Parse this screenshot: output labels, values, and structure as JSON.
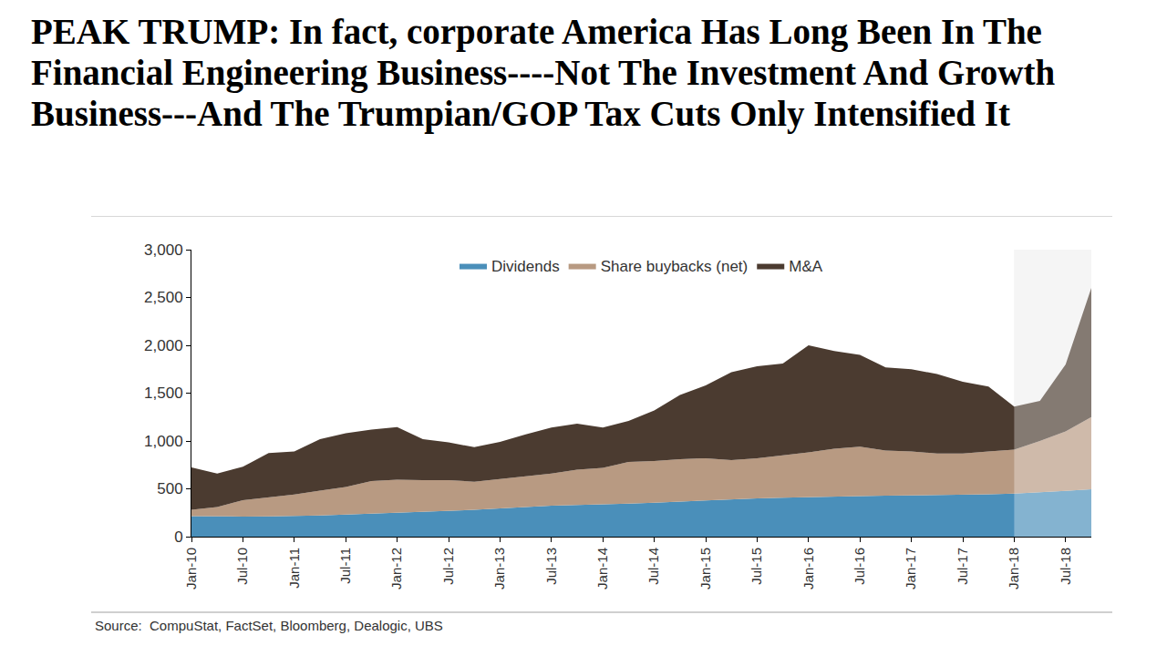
{
  "chart_data": {
    "type": "area",
    "title": "PEAK TRUMP: In fact, corporate America Has Long Been In The Financial Engineering Business----Not The Investment And Growth Business---And The Trumpian/GOP Tax Cuts Only Intensified It",
    "source": "Source:  CompuStat, FactSet, Bloomberg, Dealogic, UBS",
    "categories": [
      "Jan-10",
      null,
      "Jul-10",
      null,
      "Jan-11",
      null,
      "Jul-11",
      null,
      "Jan-12",
      null,
      "Jul-12",
      null,
      "Jan-13",
      null,
      "Jul-13",
      null,
      "Jan-14",
      null,
      "Jul-14",
      null,
      "Jan-15",
      null,
      "Jul-15",
      null,
      "Jan-16",
      null,
      "Jul-16",
      null,
      "Jan-17",
      null,
      "Jul-17",
      null,
      "Jan-18",
      null,
      "Jul-18",
      null
    ],
    "series": [
      {
        "name": "Dividends",
        "color": "#4a8fba",
        "values": [
          215,
          210,
          210,
          212,
          215,
          222,
          230,
          240,
          250,
          258,
          265,
          280,
          295,
          310,
          325,
          332,
          335,
          345,
          355,
          368,
          380,
          392,
          400,
          408,
          415,
          420,
          425,
          428,
          430,
          433,
          436,
          442,
          450,
          462,
          478,
          495
        ]
      },
      {
        "name": "Share buybacks (net)",
        "color": "#b89a82",
        "values": [
          65,
          100,
          170,
          198,
          225,
          258,
          290,
          340,
          345,
          332,
          325,
          295,
          305,
          320,
          335,
          368,
          385,
          435,
          435,
          442,
          440,
          408,
          420,
          442,
          465,
          500,
          515,
          472,
          460,
          437,
          434,
          448,
          460,
          538,
          622,
          755
        ]
      },
      {
        "name": "M&A",
        "color": "#4b3b30",
        "values": [
          445,
          350,
          350,
          465,
          450,
          540,
          560,
          540,
          550,
          430,
          395,
          360,
          390,
          440,
          480,
          480,
          420,
          430,
          530,
          670,
          760,
          920,
          960,
          960,
          1120,
          1020,
          960,
          870,
          860,
          830,
          750,
          680,
          450,
          420,
          700,
          1350
        ]
      }
    ],
    "stacked": true,
    "shaded_from": "Jan-18",
    "ylim": [
      0,
      3000
    ],
    "yticks": [
      0,
      500,
      {
        "value": 1000,
        "label": "1,000"
      },
      {
        "value": 1500,
        "label": "1,500"
      },
      {
        "value": 2000,
        "label": "2,000"
      },
      {
        "value": 2500,
        "label": "2,500"
      },
      {
        "value": 3000,
        "label": "3,000"
      }
    ],
    "grid": false,
    "legend": "top"
  }
}
